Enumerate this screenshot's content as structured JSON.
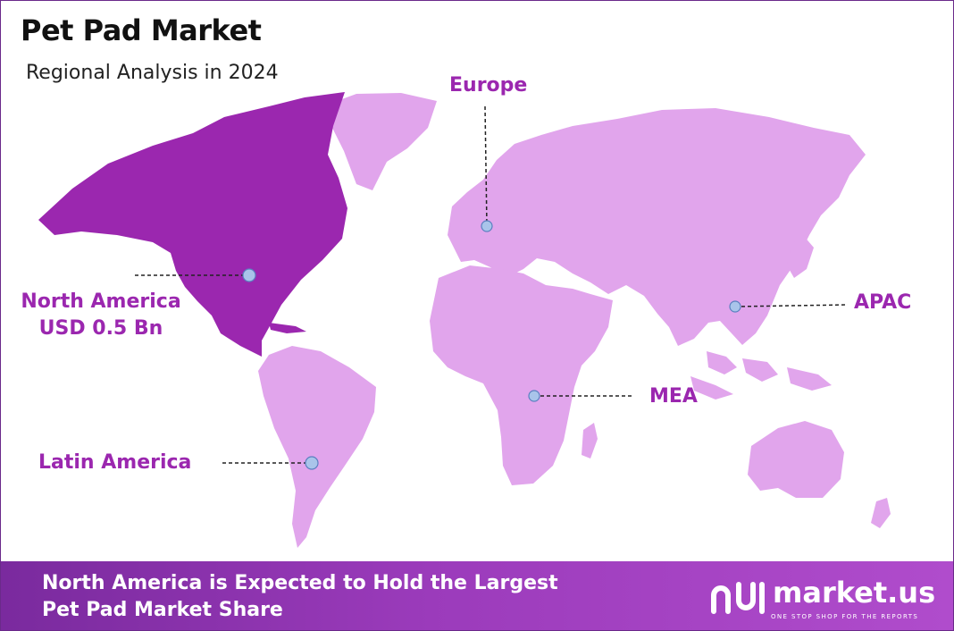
{
  "title": "Pet Pad Market",
  "subtitle": "Regional Analysis in 2024",
  "regions": [
    {
      "key": "north-america",
      "name": "North America",
      "value": "USD 0.5 Bn",
      "highlighted": true
    },
    {
      "key": "europe",
      "name": "Europe",
      "value": "",
      "highlighted": false
    },
    {
      "key": "apac",
      "name": "APAC",
      "value": "",
      "highlighted": false
    },
    {
      "key": "mea",
      "name": "MEA",
      "value": "",
      "highlighted": false
    },
    {
      "key": "latin-america",
      "name": "Latin America",
      "value": "",
      "highlighted": false
    }
  ],
  "banner": {
    "line1": "North America is Expected to Hold the Largest",
    "line2": "Pet Pad Market Share"
  },
  "logo": {
    "name": "market.us",
    "tagline": "ONE STOP SHOP FOR THE REPORTS"
  },
  "colors": {
    "highlight": "#9b27af",
    "land": "#e1a5ec",
    "marker": "#a9c4ea",
    "banner": "#8e35b0"
  }
}
